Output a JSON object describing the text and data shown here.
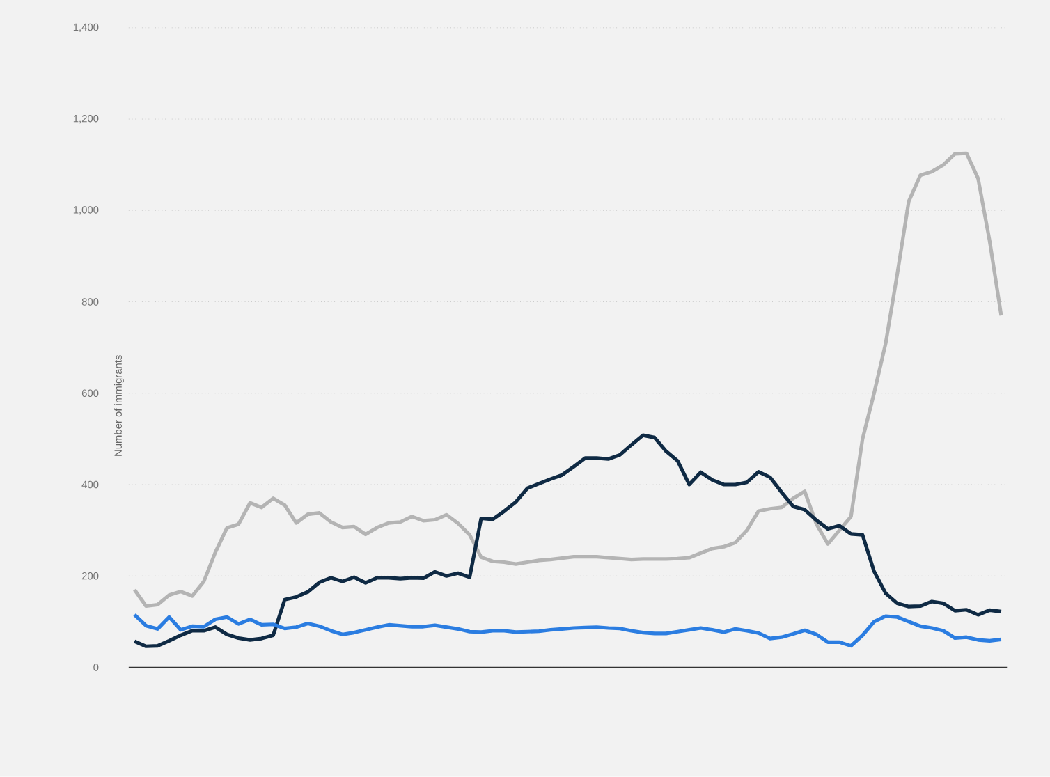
{
  "chart_data": {
    "type": "line",
    "ylabel": "Number of immigrants",
    "categories": [
      null,
      null,
      null,
      null,
      null,
      null,
      null,
      null,
      null,
      null,
      null,
      null,
      null,
      null,
      null,
      null,
      null,
      null,
      null,
      null,
      null,
      null,
      null,
      null,
      null,
      null,
      null,
      null,
      null,
      null,
      null,
      null,
      null,
      null,
      null,
      null,
      null,
      null,
      null,
      null,
      null,
      null,
      null,
      null,
      null,
      null,
      null,
      null,
      null,
      null,
      null,
      null,
      null,
      null,
      null,
      null,
      null,
      null,
      null,
      null,
      null,
      null,
      null,
      null,
      null,
      null,
      null,
      null,
      null,
      null,
      null,
      null,
      null,
      null,
      null,
      null
    ],
    "series": [
      {
        "color": "#b4b4b4",
        "values": [
          170,
          134,
          137,
          158,
          166,
          156,
          188,
          252,
          305,
          313,
          360,
          350,
          370,
          355,
          316,
          335,
          338,
          318,
          306,
          308,
          291,
          306,
          316,
          318,
          330,
          321,
          323,
          334,
          315,
          290,
          241,
          232,
          230,
          226,
          230,
          234,
          236,
          239,
          242,
          242,
          242,
          240,
          238,
          236,
          237,
          237,
          237,
          238,
          240,
          250,
          260,
          264,
          273,
          300,
          342,
          347,
          350,
          370,
          385,
          314,
          270,
          300,
          330,
          500,
          600,
          709,
          860,
          1020,
          1077,
          1085,
          1100,
          1124,
          1125,
          1070,
          933,
          770
        ]
      },
      {
        "color": "#0f2a44",
        "values": [
          57,
          46,
          47,
          58,
          70,
          80,
          80,
          88,
          72,
          64,
          60,
          63,
          70,
          148,
          154,
          165,
          186,
          196,
          188,
          197,
          185,
          196,
          196,
          194,
          196,
          195,
          209,
          200,
          206,
          197,
          326,
          324,
          342,
          362,
          392,
          402,
          412,
          421,
          439,
          458,
          458,
          456,
          465,
          487,
          508,
          503,
          473,
          452,
          400,
          427,
          410,
          400,
          400,
          405,
          428,
          416,
          383,
          352,
          345,
          322,
          303,
          310,
          292,
          290,
          210,
          162,
          140,
          133,
          134,
          144,
          140,
          124,
          126,
          115,
          125,
          122
        ]
      },
      {
        "color": "#2b7de1",
        "values": [
          115,
          91,
          84,
          110,
          82,
          90,
          89,
          105,
          110,
          95,
          105,
          93,
          94,
          85,
          88,
          96,
          90,
          80,
          72,
          76,
          82,
          88,
          93,
          91,
          89,
          89,
          92,
          88,
          84,
          78,
          77,
          80,
          80,
          77,
          78,
          79,
          82,
          84,
          86,
          87,
          88,
          86,
          85,
          80,
          76,
          74,
          74,
          78,
          82,
          86,
          82,
          77,
          84,
          80,
          75,
          63,
          66,
          73,
          81,
          72,
          55,
          55,
          47,
          70,
          100,
          112,
          110,
          100,
          90,
          86,
          80,
          64,
          66,
          60,
          58,
          61
        ]
      }
    ],
    "ylim": [
      0,
      1400
    ],
    "yticks": [
      0,
      200,
      400,
      600,
      800,
      {
        "value": 1000,
        "label": "1,000"
      },
      {
        "value": 1200,
        "label": "1,200"
      },
      {
        "value": 1400,
        "label": "1,400"
      }
    ],
    "grid": "y",
    "tick_labels": "y",
    "marker": "none",
    "line_style": "solid"
  }
}
